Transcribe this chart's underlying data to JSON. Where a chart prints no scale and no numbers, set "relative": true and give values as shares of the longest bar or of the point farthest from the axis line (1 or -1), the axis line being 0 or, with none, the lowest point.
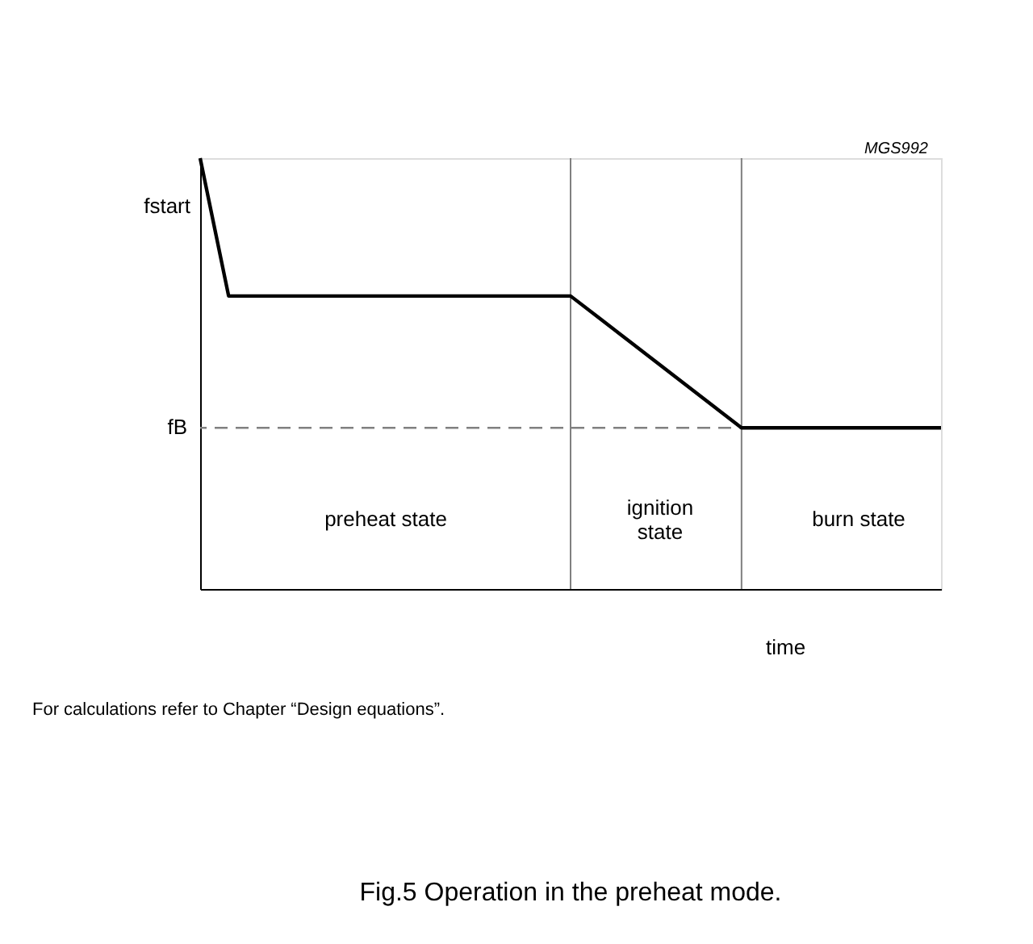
{
  "chart_data": {
    "type": "line",
    "relative": true,
    "title": "Fig.5  Operation in the preheat mode.",
    "xlabel": "time",
    "categories": [
      null,
      null,
      null,
      null,
      null,
      null,
      null,
      null,
      null,
      null,
      null,
      null,
      null,
      null,
      null,
      null,
      null,
      null,
      null,
      null,
      null,
      null,
      null,
      null,
      null,
      null,
      null
    ],
    "series": [
      {
        "color": "#000000",
        "values": [
          1,
          0.68,
          0.68,
          0.68,
          0.68,
          0.68,
          0.68,
          0.68,
          0.68,
          0.68,
          0.68,
          0.68,
          0.68,
          0.68,
          0.629,
          0.578,
          0.527,
          0.476,
          0.425,
          0.374,
          0.374,
          0.374,
          0.374,
          0.374,
          0.374,
          0.374,
          0.374
        ]
      }
    ],
    "marker": "none",
    "line_style": "solid",
    "grid": false,
    "ref_lines": [
      {
        "axis": "y",
        "value": 0.374,
        "label": "fB",
        "color": "#808080",
        "line_style": "dashed"
      }
    ],
    "annotations": [
      "MGS992",
      "fstart",
      "preheat state",
      "ignition\nstate",
      "burn state",
      "For calculations refer to Chapter “Design equations”."
    ]
  }
}
